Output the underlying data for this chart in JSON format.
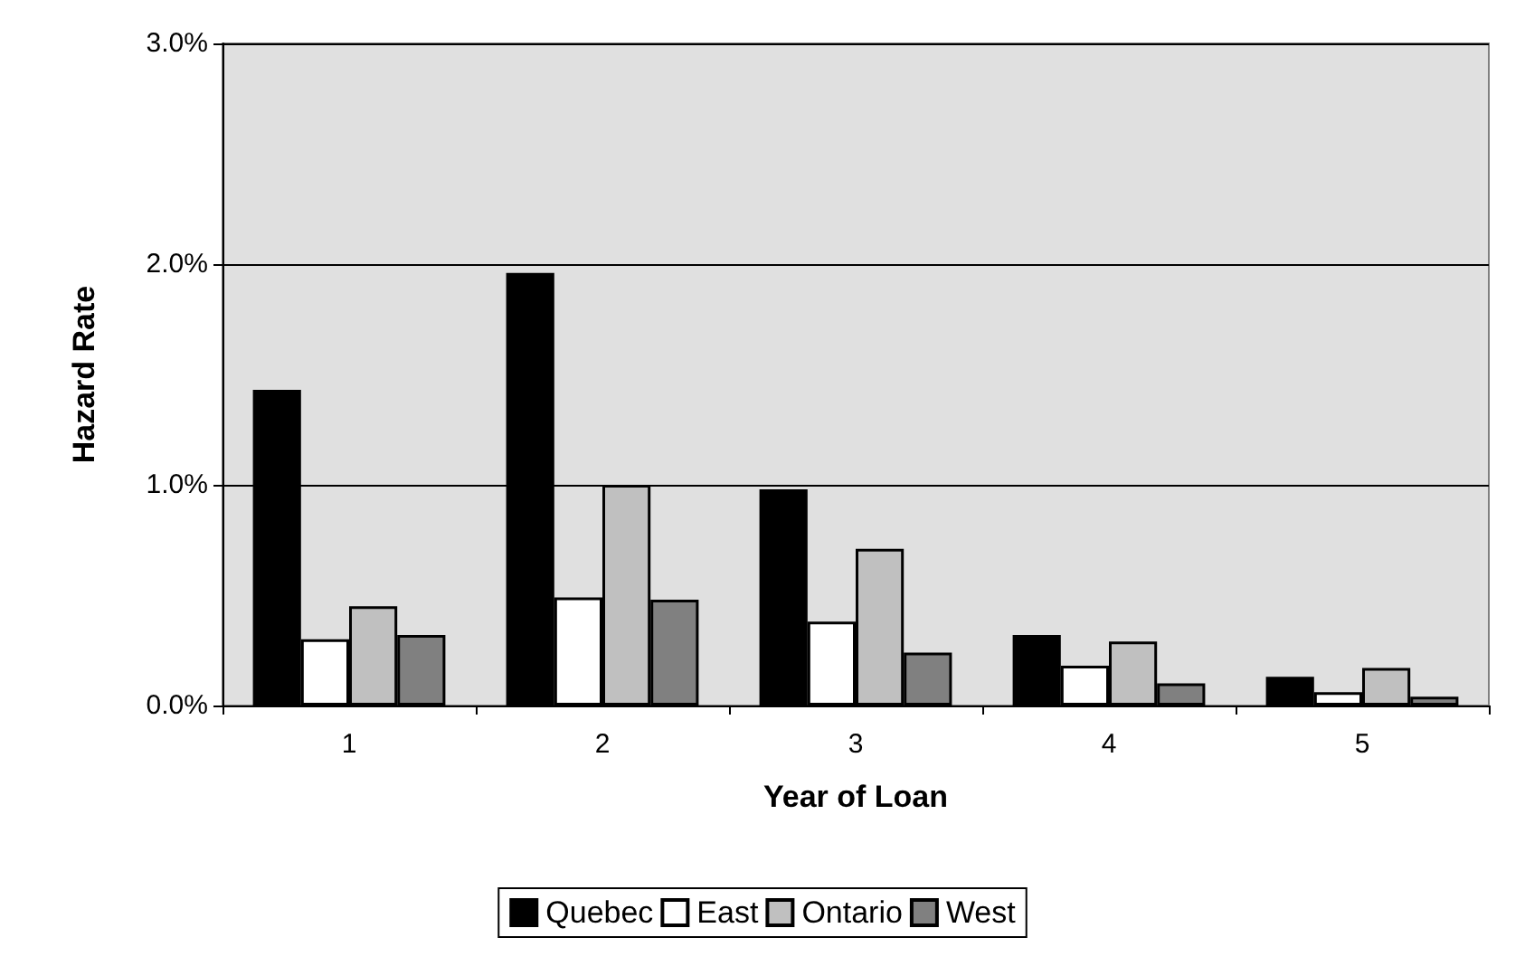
{
  "chart_data": {
    "type": "bar",
    "xlabel": "Year of Loan",
    "ylabel": "Hazard Rate",
    "categories": [
      "1",
      "2",
      "3",
      "4",
      "5"
    ],
    "series": [
      {
        "name": "Quebec",
        "color": "#000000",
        "values": [
          1.43,
          1.96,
          0.98,
          0.32,
          0.13
        ]
      },
      {
        "name": "East",
        "color": "#ffffff",
        "values": [
          0.3,
          0.49,
          0.38,
          0.18,
          0.06
        ]
      },
      {
        "name": "Ontario",
        "color": "#c0c0c0",
        "values": [
          0.45,
          1.0,
          0.71,
          0.29,
          0.17
        ]
      },
      {
        "name": "West",
        "color": "#808080",
        "values": [
          0.32,
          0.48,
          0.24,
          0.1,
          0.04
        ]
      }
    ],
    "ylim": [
      0,
      3
    ],
    "yticks": [
      {
        "value": 0,
        "label": "0.0%"
      },
      {
        "value": 1,
        "label": "1.0%"
      },
      {
        "value": 2,
        "label": "2.0%"
      },
      {
        "value": 3,
        "label": "3.0%"
      }
    ],
    "grid": "y",
    "legend": "bottom"
  }
}
